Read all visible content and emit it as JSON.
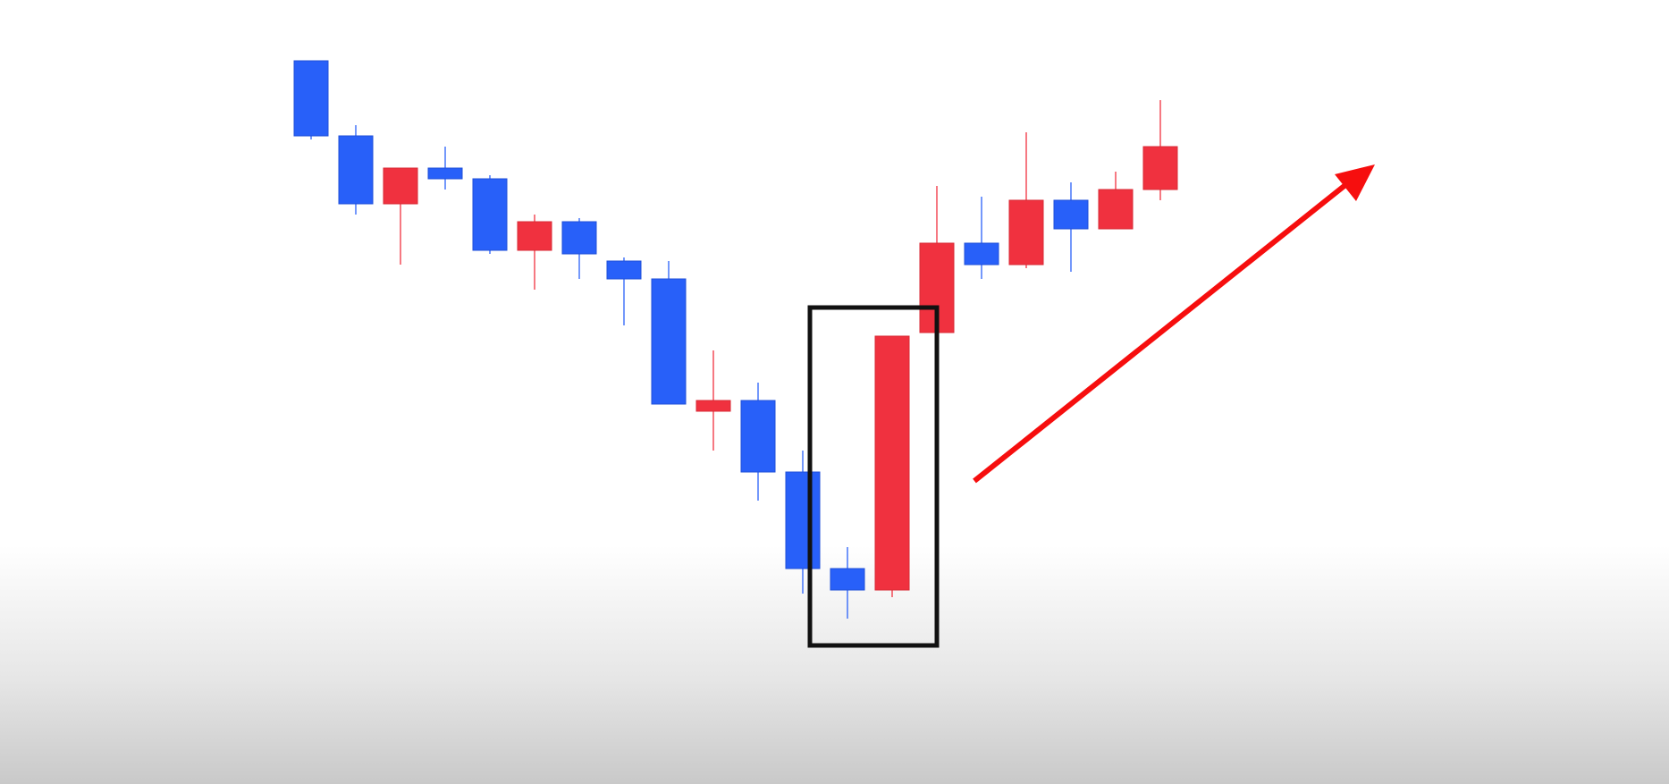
{
  "chart_data": {
    "type": "candlestick",
    "title": "",
    "xlabel": "",
    "ylabel": "",
    "grid": false,
    "legend": "none",
    "ylim": [
      0,
      100
    ],
    "colors": {
      "bullish": "#f0313f",
      "bearish": "#2860f9",
      "box": "#111111",
      "arrow": "#f60e0e"
    },
    "candles": [
      {
        "index": 1,
        "open": 100.5,
        "close": 90.0,
        "high": 100.5,
        "low": 89.5
      },
      {
        "index": 2,
        "open": 90.0,
        "close": 80.5,
        "high": 91.5,
        "low": 79.0
      },
      {
        "index": 3,
        "open": 80.5,
        "close": 85.5,
        "high": 85.5,
        "low": 72.0
      },
      {
        "index": 4,
        "open": 85.5,
        "close": 84.0,
        "high": 88.5,
        "low": 82.5
      },
      {
        "index": 5,
        "open": 84.0,
        "close": 74.0,
        "high": 84.5,
        "low": 73.5
      },
      {
        "index": 6,
        "open": 74.0,
        "close": 78.0,
        "high": 79.0,
        "low": 68.5
      },
      {
        "index": 7,
        "open": 78.0,
        "close": 73.5,
        "high": 78.5,
        "low": 70.0
      },
      {
        "index": 8,
        "open": 72.5,
        "close": 70.0,
        "high": 73.0,
        "low": 63.5
      },
      {
        "index": 9,
        "open": 70.0,
        "close": 52.5,
        "high": 72.5,
        "low": 52.5
      },
      {
        "index": 10,
        "open": 51.5,
        "close": 53.0,
        "high": 60.0,
        "low": 46.0
      },
      {
        "index": 11,
        "open": 53.0,
        "close": 43.0,
        "high": 55.5,
        "low": 39.0
      },
      {
        "index": 12,
        "open": 43.0,
        "close": 29.5,
        "high": 46.0,
        "low": 26.0
      },
      {
        "index": 13,
        "open": 29.5,
        "close": 26.5,
        "high": 32.5,
        "low": 22.5
      },
      {
        "index": 14,
        "open": 26.5,
        "close": 62.0,
        "high": 62.0,
        "low": 25.5
      },
      {
        "index": 15,
        "open": 62.5,
        "close": 75.0,
        "high": 83.0,
        "low": 62.5
      },
      {
        "index": 16,
        "open": 75.0,
        "close": 72.0,
        "high": 81.5,
        "low": 70.0
      },
      {
        "index": 17,
        "open": 72.0,
        "close": 81.0,
        "high": 90.5,
        "low": 71.5
      },
      {
        "index": 18,
        "open": 81.0,
        "close": 77.0,
        "high": 83.5,
        "low": 71.0
      },
      {
        "index": 19,
        "open": 77.0,
        "close": 82.5,
        "high": 85.0,
        "low": 77.0
      },
      {
        "index": 20,
        "open": 82.5,
        "close": 88.5,
        "high": 95.0,
        "low": 81.0
      }
    ],
    "annotations": [
      {
        "type": "box",
        "label": "",
        "from_index": 13,
        "to_index": 14
      },
      {
        "type": "arrow",
        "label": "",
        "direction": "up-right"
      }
    ]
  }
}
